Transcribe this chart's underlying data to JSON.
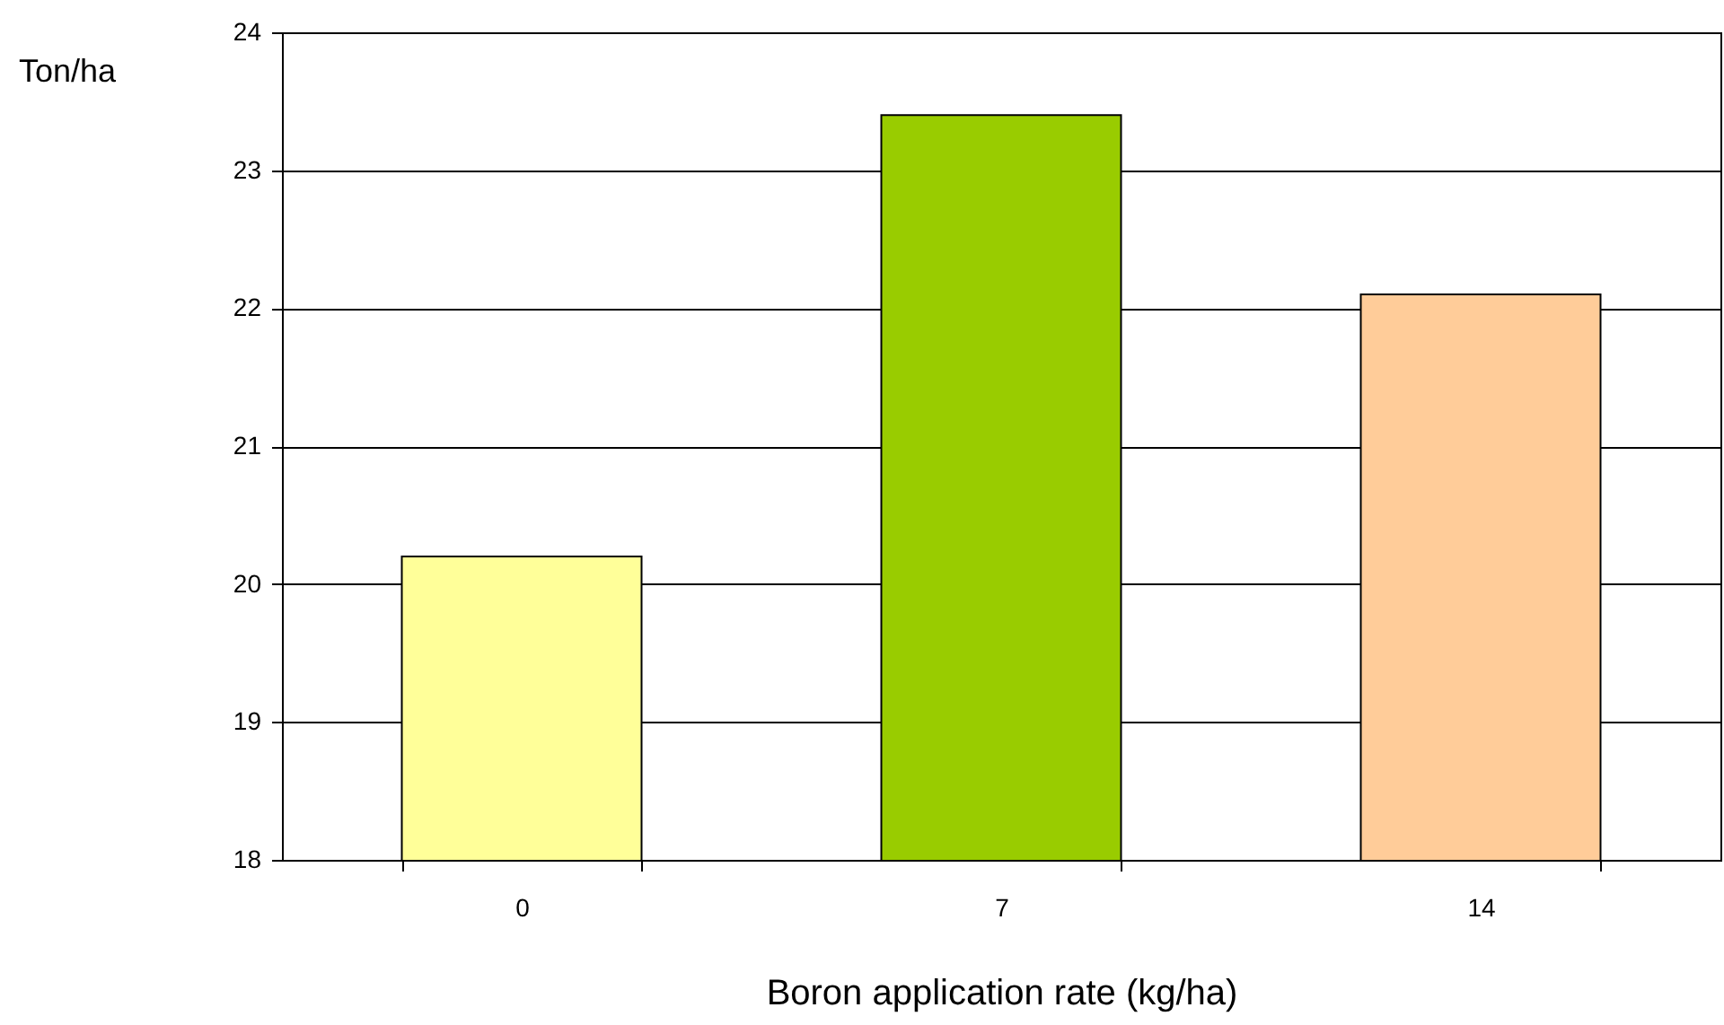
{
  "chart_data": {
    "type": "bar",
    "xlabel": "Boron application rate (kg/ha)",
    "ylabel": "Ton/ha",
    "categories": [
      "0",
      "7",
      "14"
    ],
    "values": [
      20.2,
      23.4,
      22.1
    ],
    "colors": [
      "#ffff99",
      "#99cc00",
      "#ffcc99"
    ],
    "ylim": [
      18,
      24
    ],
    "yticks": [
      18,
      19,
      20,
      21,
      22,
      23,
      24
    ],
    "grid": "y"
  }
}
